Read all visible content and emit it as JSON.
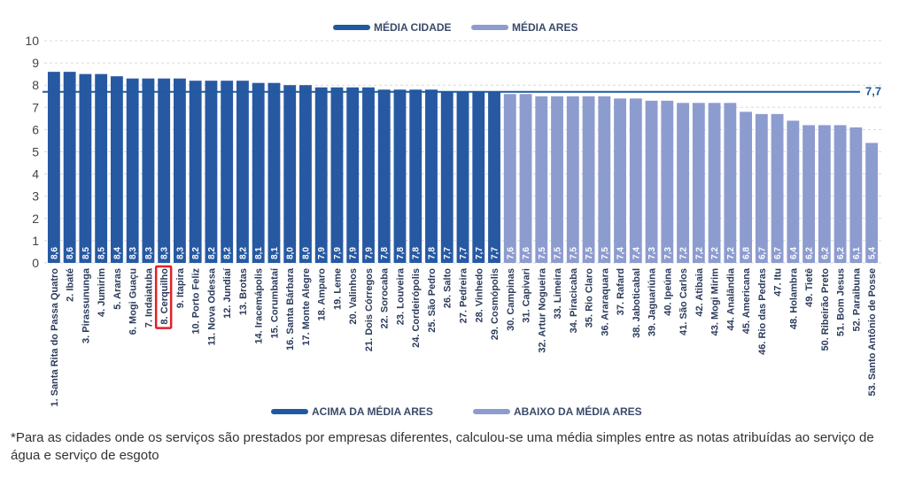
{
  "chart_data": {
    "type": "bar",
    "ylim": [
      0,
      10
    ],
    "yticks": [
      "0",
      "1",
      "2",
      "3",
      "4",
      "5",
      "6",
      "7",
      "8",
      "9",
      "10"
    ],
    "grid": true,
    "categories": [
      "1. Santa Rita do Passa Quatro",
      "2. Ibaté",
      "3. Pirassununga",
      "4. Jumirim",
      "5. Araras",
      "6. Mogi Guaçu",
      "7. Indaiatuba",
      "8. Cerquilho",
      "9. Itapira",
      "10. Porto Feliz",
      "11. Nova Odessa",
      "12. Jundiaí",
      "13. Brotas",
      "14. Iracemápolis",
      "15. Corumbataí",
      "16. Santa Bárbara",
      "17. Monte Alegre",
      "18. Amparo",
      "19. Leme",
      "20. Valinhos",
      "21. Dois Córregos",
      "22. Sorocaba",
      "23. Louveira",
      "24. Cordeirópolis",
      "25. São Pedro",
      "26. Salto",
      "27. Pedreira",
      "28. Vinhedo",
      "29. Cosmópolis",
      "30. Campinas",
      "31. Capivari",
      "32. Artur Nogueira",
      "33. Limeira",
      "34. Piracicaba",
      "35. Rio Claro",
      "36. Araraquara",
      "37. Rafard",
      "38. Jaboticabal",
      "39. Jaguariúna",
      "40. Ipeúna",
      "41. São Carlos",
      "42. Atibaia",
      "43. Mogi Mirim",
      "44. Analândia",
      "45. Americana",
      "46. Rio das Pedras",
      "47. Itu",
      "48. Holambra",
      "49. Tietê",
      "50. Ribeirão Preto",
      "51. Bom Jesus",
      "52. Paraibuna",
      "53. Santo Antônio de Posse"
    ],
    "values": [
      8.6,
      8.6,
      8.5,
      8.5,
      8.4,
      8.3,
      8.3,
      8.3,
      8.3,
      8.2,
      8.2,
      8.2,
      8.2,
      8.1,
      8.1,
      8.0,
      8.0,
      7.9,
      7.9,
      7.9,
      7.9,
      7.8,
      7.8,
      7.8,
      7.8,
      7.7,
      7.7,
      7.7,
      7.7,
      7.6,
      7.6,
      7.5,
      7.5,
      7.5,
      7.5,
      7.5,
      7.4,
      7.4,
      7.3,
      7.3,
      7.2,
      7.2,
      7.2,
      7.2,
      6.8,
      6.7,
      6.7,
      6.4,
      6.2,
      6.2,
      6.2,
      6.1,
      5.4
    ],
    "value_labels": [
      "8,6",
      "8,6",
      "8,5",
      "8,5",
      "8,4",
      "8,3",
      "8,3",
      "8,3",
      "8,3",
      "8,2",
      "8,2",
      "8,2",
      "8,2",
      "8,1",
      "8,1",
      "8,0",
      "8,0",
      "7,9",
      "7,9",
      "7,9",
      "7,9",
      "7,8",
      "7,8",
      "7,8",
      "7,8",
      "7,7",
      "7,7",
      "7,7",
      "7,7",
      "7,6",
      "7,6",
      "7,5",
      "7,5",
      "7,5",
      "7,5",
      "7,5",
      "7,4",
      "7,4",
      "7,3",
      "7,3",
      "7,2",
      "7,2",
      "7,2",
      "7,2",
      "6,8",
      "6,7",
      "6,7",
      "6,4",
      "6,2",
      "6,2",
      "6,2",
      "6,1",
      "5,4"
    ],
    "above_count": 29,
    "highlight_category": "8. Cerquilho",
    "reference_line": {
      "value": 7.7,
      "label": "7,7"
    },
    "legend_top": [
      {
        "label": "MÉDIA CIDADE",
        "color": "#1e5aa0"
      },
      {
        "label": "MÉDIA ARES",
        "color": "#8d9ccf"
      }
    ],
    "legend_bottom": [
      {
        "label": "ACIMA DA MÉDIA ARES",
        "color": "#1e5aa0"
      },
      {
        "label": "ABAIXO DA MÉDIA ARES",
        "color": "#8d9ccf"
      }
    ],
    "colors": {
      "above": "#2759a3",
      "below": "#8d9ccf",
      "reference": "#1e5aa0",
      "highlight": "#e0202a"
    }
  },
  "footnote": "*Para as cidades onde os serviços são prestados por empresas diferentes, calculou-se uma média simples entre as notas atribuídas ao serviço de água e serviço de esgoto"
}
